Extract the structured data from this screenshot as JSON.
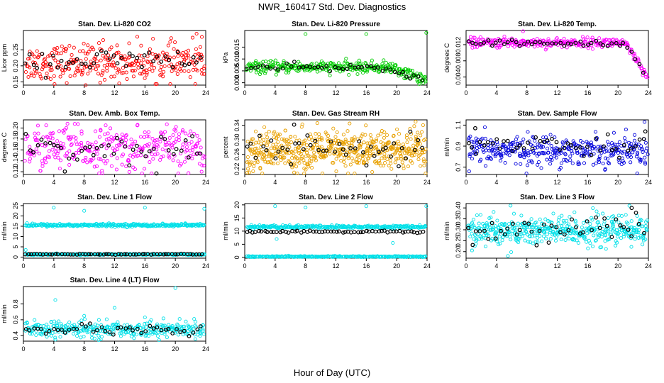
{
  "figure": {
    "title": "NWR_160417  Std. Dev. Diagnostics",
    "xlabel": "Hour of Day (UTC)"
  },
  "chart_data": [
    {
      "type": "scatter",
      "title": "Stan. Dev. Li-820 CO2",
      "ylabel": "Licor ppm",
      "xlim": [
        0,
        24
      ],
      "ylim": [
        0.14,
        0.31
      ],
      "xticks": [
        0,
        4,
        8,
        12,
        16,
        20,
        24
      ],
      "yticks": [
        0.15,
        0.2,
        0.25
      ],
      "series": [
        {
          "color": "#ff0000",
          "count": 320,
          "mean": 0.21,
          "spread": 0.028,
          "outliers": [
            [
              22.8,
              0.3
            ],
            [
              23.5,
              0.29
            ],
            [
              8.2,
              0.14
            ],
            [
              10.5,
              0.28
            ]
          ]
        },
        {
          "color": "#000000",
          "count": 45,
          "mean": 0.215,
          "spread": 0.018,
          "outliers": []
        }
      ]
    },
    {
      "type": "scatter",
      "title": "Stan. Dev. Li-820 Pressure",
      "ylabel": "kPa",
      "xlim": [
        0,
        24
      ],
      "ylim": [
        -0.001,
        0.022
      ],
      "xticks": [
        0,
        4,
        8,
        12,
        16,
        20,
        24
      ],
      "yticks": [
        0.0,
        0.005,
        0.01,
        0.015
      ],
      "series": [
        {
          "color": "#00cc00",
          "count": 340,
          "mean": 0.0065,
          "spread": 0.0012,
          "trend": "drop-end",
          "outliers": [
            [
              8.0,
              0.0205
            ],
            [
              16.0,
              0.0205
            ],
            [
              23.9,
              0.021
            ]
          ]
        },
        {
          "color": "#000000",
          "count": 45,
          "mean": 0.0063,
          "spread": 0.0008,
          "trend": "drop-end",
          "outliers": []
        }
      ]
    },
    {
      "type": "scatter",
      "title": "Stan. Dev. Li-820 Temp.",
      "ylabel": "degrees C",
      "xlim": [
        0,
        24
      ],
      "ylim": [
        0.002,
        0.0155
      ],
      "xticks": [
        0,
        4,
        8,
        12,
        16,
        20,
        24
      ],
      "yticks": [
        0.004,
        0.008,
        0.012
      ],
      "series": [
        {
          "color": "#ff00ff",
          "count": 300,
          "mean": 0.0125,
          "spread": 0.0006,
          "trend": "drop-end-strong",
          "outliers": [
            [
              7.5,
              0.0153
            ]
          ]
        },
        {
          "color": "#000000",
          "count": 45,
          "mean": 0.0123,
          "spread": 0.0004,
          "trend": "drop-end-strong",
          "outliers": []
        }
      ]
    },
    {
      "type": "scatter",
      "title": "Stan. Dev. Amb. Box Temp.",
      "ylabel": "degrees C",
      "xlim": [
        0,
        24
      ],
      "ylim": [
        0.115,
        0.215
      ],
      "xticks": [
        0,
        4,
        8,
        12,
        16,
        20,
        24
      ],
      "yticks": [
        0.12,
        0.14,
        0.16,
        0.18,
        0.2
      ],
      "series": [
        {
          "color": "#ff00ff",
          "count": 320,
          "mean": 0.162,
          "spread": 0.02,
          "outliers": [
            [
              5.8,
              0.208
            ],
            [
              3.0,
              0.205
            ]
          ]
        },
        {
          "color": "#000000",
          "count": 45,
          "mean": 0.16,
          "spread": 0.014,
          "outliers": []
        }
      ]
    },
    {
      "type": "scatter",
      "title": "Stan. Dev. Gas Stream RH",
      "ylabel": "percent",
      "xlim": [
        0,
        24
      ],
      "ylim": [
        0.205,
        0.355
      ],
      "xticks": [
        0,
        4,
        8,
        12,
        16,
        20,
        24
      ],
      "yticks": [
        0.22,
        0.26,
        0.3,
        0.34
      ],
      "series": [
        {
          "color": "#e8a000",
          "count": 560,
          "mean": 0.27,
          "spread": 0.028,
          "outliers": [
            [
              22.5,
              0.35
            ],
            [
              13.8,
              0.345
            ]
          ]
        },
        {
          "color": "#000000",
          "count": 45,
          "mean": 0.27,
          "spread": 0.02,
          "outliers": [
            [
              6.5,
              0.342
            ]
          ]
        }
      ]
    },
    {
      "type": "scatter",
      "title": "Stan. Dev. Sample Flow",
      "ylabel": "ml/min",
      "xlim": [
        0,
        24
      ],
      "ylim": [
        0.63,
        1.15
      ],
      "xticks": [
        0,
        4,
        8,
        12,
        16,
        20,
        24
      ],
      "yticks": [
        0.7,
        0.9,
        1.1
      ],
      "series": [
        {
          "color": "#0000dd",
          "count": 360,
          "mean": 0.86,
          "spread": 0.07,
          "outliers": [
            [
              23.5,
              1.13
            ],
            [
              0.4,
              0.66
            ]
          ]
        },
        {
          "color": "#000000",
          "count": 45,
          "mean": 0.92,
          "spread": 0.07,
          "outliers": [
            [
              1.2,
              1.07
            ],
            [
              23.6,
              1.04
            ]
          ]
        }
      ]
    },
    {
      "type": "scatter",
      "title": "Stan. Dev. Line 1 Flow",
      "ylabel": "ml/min",
      "xlim": [
        0,
        24
      ],
      "ylim": [
        -0.5,
        26
      ],
      "xticks": [
        0,
        4,
        8,
        12,
        16,
        20,
        24
      ],
      "yticks": [
        0,
        5,
        10,
        15,
        20,
        25
      ],
      "series": [
        {
          "color": "#00e0e8",
          "count": 300,
          "mean": 15.5,
          "spread": 0.35,
          "outliers": [
            [
              4.0,
              24.0
            ],
            [
              8.0,
              22.5
            ],
            [
              16.0,
              24.0
            ],
            [
              23.8,
              23.5
            ],
            [
              0.3,
              3.5
            ]
          ]
        },
        {
          "color": "#00e0e8",
          "count": 260,
          "mean": 1.3,
          "spread": 0.15,
          "outliers": []
        },
        {
          "color": "#000000",
          "count": 60,
          "mean": 1.4,
          "spread": 0.1,
          "outliers": []
        }
      ]
    },
    {
      "type": "scatter",
      "title": "Stan. Dev. Line 2 Flow",
      "ylabel": "ml/min",
      "xlim": [
        0,
        24
      ],
      "ylim": [
        -0.3,
        20.5
      ],
      "xticks": [
        0,
        4,
        8,
        12,
        16,
        20,
        24
      ],
      "yticks": [
        0,
        5,
        10,
        15,
        20
      ],
      "series": [
        {
          "color": "#00e0e8",
          "count": 300,
          "mean": 11.6,
          "spread": 0.3,
          "outliers": [
            [
              4.0,
              19.5
            ],
            [
              8.0,
              19.0
            ],
            [
              16.0,
              19.5
            ],
            [
              23.9,
              19.5
            ],
            [
              4.2,
              7.0
            ],
            [
              19.5,
              5.5
            ]
          ]
        },
        {
          "color": "#00e0e8",
          "count": 260,
          "mean": 0.3,
          "spread": 0.1,
          "outliers": []
        },
        {
          "color": "#000000",
          "count": 60,
          "mean": 9.8,
          "spread": 0.2,
          "outliers": []
        }
      ]
    },
    {
      "type": "scatter",
      "title": "Stan. Dev. Line 3 Flow",
      "ylabel": "ml/min",
      "xlim": [
        0,
        24
      ],
      "ylim": [
        0.17,
        0.42
      ],
      "xticks": [
        0,
        4,
        8,
        12,
        16,
        20,
        24
      ],
      "yticks": [
        0.2,
        0.25,
        0.3,
        0.35,
        0.4
      ],
      "series": [
        {
          "color": "#00e0e8",
          "count": 460,
          "mean": 0.295,
          "spread": 0.035,
          "outliers": [
            [
              21.5,
              0.41
            ],
            [
              5.5,
              0.18
            ]
          ]
        },
        {
          "color": "#000000",
          "count": 45,
          "mean": 0.3,
          "spread": 0.03,
          "outliers": [
            [
              21.8,
              0.4
            ]
          ]
        }
      ]
    },
    {
      "type": "scatter",
      "title": "Stan. Dev. Line 4 (LT) Flow",
      "ylabel": "ml/min",
      "xlim": [
        0,
        24
      ],
      "ylim": [
        0.33,
        1.02
      ],
      "xticks": [
        0,
        4,
        8,
        12,
        16,
        20,
        24
      ],
      "yticks": [
        0.4,
        0.6,
        0.8
      ],
      "series": [
        {
          "color": "#00e0e8",
          "count": 320,
          "mean": 0.48,
          "spread": 0.05,
          "outliers": [
            [
              20.0,
              1.0
            ],
            [
              4.2,
              0.85
            ],
            [
              12.0,
              0.75
            ],
            [
              8.0,
              0.65
            ],
            [
              16.0,
              0.63
            ],
            [
              4.2,
              0.35
            ]
          ]
        },
        {
          "color": "#000000",
          "count": 45,
          "mean": 0.47,
          "spread": 0.03,
          "outliers": []
        }
      ]
    }
  ]
}
